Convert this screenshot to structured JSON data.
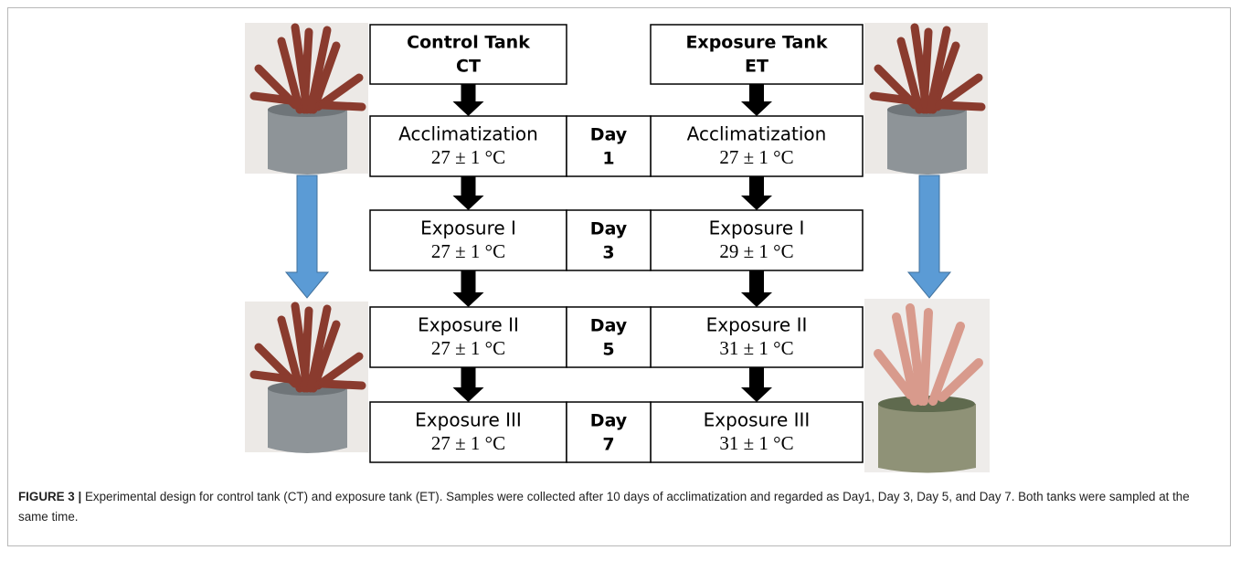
{
  "tanks": [
    {
      "title": "Control Tank",
      "abbr": "CT"
    },
    {
      "title": "Exposure Tank",
      "abbr": "ET"
    }
  ],
  "stages": [
    {
      "control": {
        "label": "Acclimatization",
        "temp": "27 ± 1 °C"
      },
      "day": {
        "label": "Day",
        "number": "1"
      },
      "exposure": {
        "label": "Acclimatization",
        "temp": "27 ± 1 °C"
      }
    },
    {
      "control": {
        "label": "Exposure I",
        "temp": "27 ± 1 °C"
      },
      "day": {
        "label": "Day",
        "number": "3"
      },
      "exposure": {
        "label": "Exposure I",
        "temp": "29 ± 1 °C"
      }
    },
    {
      "control": {
        "label": "Exposure II",
        "temp": "27 ± 1 °C"
      },
      "day": {
        "label": "Day",
        "number": "5"
      },
      "exposure": {
        "label": "Exposure II",
        "temp": "31 ± 1 °C"
      }
    },
    {
      "control": {
        "label": "Exposure III",
        "temp": "27 ± 1 °C"
      },
      "day": {
        "label": "Day",
        "number": "7"
      },
      "exposure": {
        "label": "Exposure III",
        "temp": "31 ± 1 °C"
      }
    }
  ],
  "caption": {
    "label": "FIGURE 3 |",
    "text": "Experimental design for control tank (CT) and exposure tank (ET). Samples were collected after 10 days of acclimatization and regarded as Day1, Day 3, Day 5, and Day 7. Both tanks were sampled at the same time."
  }
}
